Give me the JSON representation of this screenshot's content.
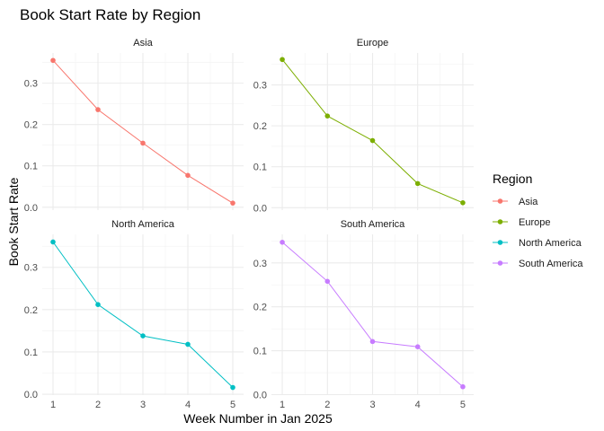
{
  "chart_data": {
    "type": "line",
    "title": "Book Start Rate by Region",
    "xlabel": "Week Number in Jan 2025",
    "ylabel": "Book Start Rate",
    "x": [
      1,
      2,
      3,
      4,
      5
    ],
    "x_ticks": [
      "1",
      "2",
      "3",
      "4",
      "5"
    ],
    "y_ticks": [
      "0.0",
      "0.1",
      "0.2",
      "0.3"
    ],
    "grid": true,
    "legend": {
      "title": "Region",
      "placement": "right"
    },
    "facets": [
      {
        "name": "Asia",
        "color": "#F8766D",
        "values": [
          0.355,
          0.236,
          0.155,
          0.077,
          0.01
        ],
        "ylim": [
          -0.007,
          0.373
        ]
      },
      {
        "name": "Europe",
        "color": "#7CAE00",
        "values": [
          0.362,
          0.224,
          0.164,
          0.059,
          0.012
        ],
        "ylim": [
          -0.006,
          0.378
        ]
      },
      {
        "name": "North America",
        "color": "#00BFC4",
        "values": [
          0.36,
          0.212,
          0.138,
          0.118,
          0.016
        ],
        "ylim": [
          -0.002,
          0.378
        ]
      },
      {
        "name": "South America",
        "color": "#C77CFF",
        "values": [
          0.347,
          0.258,
          0.121,
          0.109,
          0.018
        ],
        "ylim": [
          -0.001,
          0.365
        ]
      }
    ]
  }
}
